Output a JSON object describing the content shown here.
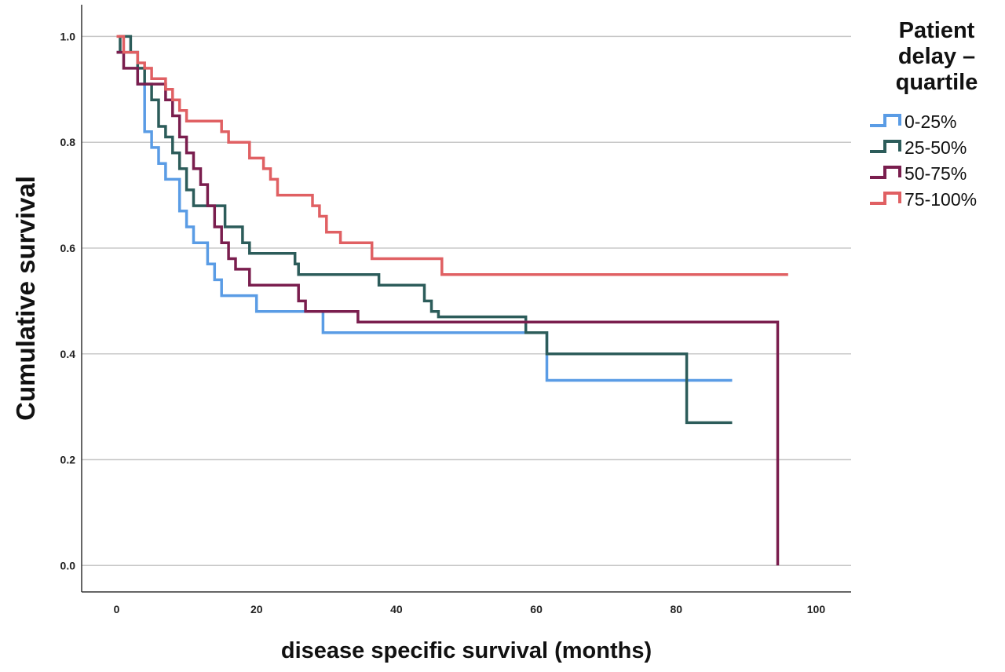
{
  "chart_data": {
    "type": "line",
    "step": true,
    "xlabel": "disease specific survival (months)",
    "ylabel": "Cumulative survival",
    "xlim": [
      -5,
      105
    ],
    "ylim": [
      -0.05,
      1.06
    ],
    "xticks": [
      0,
      20,
      40,
      60,
      80,
      100
    ],
    "yticks": [
      0.0,
      0.2,
      0.4,
      0.6,
      0.8,
      1.0
    ],
    "xtick_labels": [
      "0",
      "20",
      "40",
      "60",
      "80",
      "100"
    ],
    "ytick_labels": [
      "0.0",
      "0.2",
      "0.4",
      "0.6",
      "0.8",
      "1.0"
    ],
    "grid": "horizontal",
    "legend": {
      "title_lines": [
        "Patient",
        "delay –",
        "quartile"
      ],
      "placement": "right"
    },
    "series": [
      {
        "name": "0-25%",
        "color": "#5a9ce5",
        "points": [
          [
            0,
            0.97
          ],
          [
            1,
            0.97
          ],
          [
            3,
            0.91
          ],
          [
            4,
            0.82
          ],
          [
            5,
            0.79
          ],
          [
            6,
            0.76
          ],
          [
            7,
            0.73
          ],
          [
            9,
            0.67
          ],
          [
            10,
            0.64
          ],
          [
            11,
            0.61
          ],
          [
            13,
            0.57
          ],
          [
            14,
            0.54
          ],
          [
            15,
            0.51
          ],
          [
            19,
            0.51
          ],
          [
            20,
            0.48
          ],
          [
            29,
            0.48
          ],
          [
            29.5,
            0.44
          ],
          [
            61,
            0.44
          ],
          [
            61.5,
            0.35
          ],
          [
            88,
            0.35
          ]
        ]
      },
      {
        "name": "25-50%",
        "color": "#2c5c5a",
        "points": [
          [
            0,
            0.97
          ],
          [
            0.5,
            1.0
          ],
          [
            1.5,
            1.0
          ],
          [
            2,
            0.97
          ],
          [
            3,
            0.94
          ],
          [
            4,
            0.91
          ],
          [
            5,
            0.88
          ],
          [
            6,
            0.83
          ],
          [
            7,
            0.81
          ],
          [
            8,
            0.78
          ],
          [
            9,
            0.75
          ],
          [
            10,
            0.71
          ],
          [
            11,
            0.68
          ],
          [
            15,
            0.68
          ],
          [
            15.5,
            0.64
          ],
          [
            17,
            0.64
          ],
          [
            18,
            0.61
          ],
          [
            19,
            0.59
          ],
          [
            25,
            0.59
          ],
          [
            25.5,
            0.57
          ],
          [
            26,
            0.55
          ],
          [
            37,
            0.55
          ],
          [
            37.5,
            0.53
          ],
          [
            43,
            0.53
          ],
          [
            44,
            0.5
          ],
          [
            45,
            0.48
          ],
          [
            46,
            0.47
          ],
          [
            58,
            0.47
          ],
          [
            58.5,
            0.44
          ],
          [
            61,
            0.44
          ],
          [
            61.5,
            0.4
          ],
          [
            81,
            0.4
          ],
          [
            81.5,
            0.27
          ],
          [
            88,
            0.27
          ]
        ]
      },
      {
        "name": "50-75%",
        "color": "#7a1e4e",
        "points": [
          [
            0,
            0.97
          ],
          [
            1,
            0.94
          ],
          [
            2,
            0.94
          ],
          [
            3,
            0.91
          ],
          [
            6,
            0.91
          ],
          [
            7,
            0.88
          ],
          [
            8,
            0.85
          ],
          [
            9,
            0.81
          ],
          [
            10,
            0.78
          ],
          [
            11,
            0.75
          ],
          [
            12,
            0.72
          ],
          [
            13,
            0.68
          ],
          [
            14,
            0.64
          ],
          [
            15,
            0.61
          ],
          [
            16,
            0.58
          ],
          [
            17,
            0.56
          ],
          [
            19,
            0.53
          ],
          [
            25,
            0.53
          ],
          [
            26,
            0.5
          ],
          [
            27,
            0.48
          ],
          [
            34,
            0.48
          ],
          [
            34.5,
            0.46
          ],
          [
            94,
            0.46
          ],
          [
            94.5,
            0.0
          ]
        ]
      },
      {
        "name": "75-100%",
        "color": "#e06063",
        "points": [
          [
            0,
            1.0
          ],
          [
            1,
            0.97
          ],
          [
            2,
            0.97
          ],
          [
            3,
            0.95
          ],
          [
            4,
            0.94
          ],
          [
            5,
            0.92
          ],
          [
            7,
            0.9
          ],
          [
            8,
            0.88
          ],
          [
            9,
            0.86
          ],
          [
            10,
            0.84
          ],
          [
            14,
            0.84
          ],
          [
            15,
            0.82
          ],
          [
            16,
            0.8
          ],
          [
            18,
            0.8
          ],
          [
            19,
            0.77
          ],
          [
            20,
            0.77
          ],
          [
            21,
            0.75
          ],
          [
            22,
            0.73
          ],
          [
            23,
            0.7
          ],
          [
            27,
            0.7
          ],
          [
            28,
            0.68
          ],
          [
            29,
            0.66
          ],
          [
            30,
            0.63
          ],
          [
            32,
            0.61
          ],
          [
            36,
            0.61
          ],
          [
            36.5,
            0.58
          ],
          [
            46,
            0.58
          ],
          [
            46.5,
            0.55
          ],
          [
            96,
            0.55
          ]
        ]
      }
    ]
  }
}
